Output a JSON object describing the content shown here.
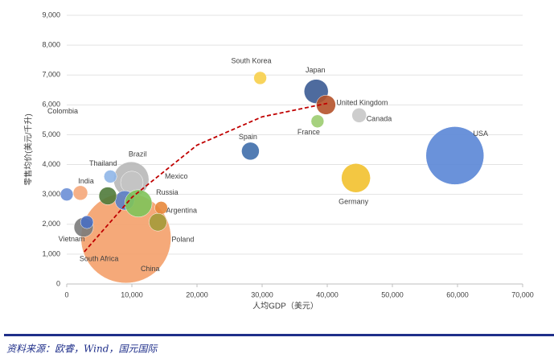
{
  "chart_data": {
    "type": "bubble",
    "xlabel": "人均GDP（美元）",
    "ylabel": "零售均价(美元/千升)",
    "source": "资料来源：欧睿，Wind，国元国际",
    "xlim": [
      0,
      70000
    ],
    "xticks": [
      0,
      {
        "value": 10000,
        "label": "10,000"
      },
      {
        "value": 20000,
        "label": "20,000"
      },
      {
        "value": 30000,
        "label": "30,000"
      },
      {
        "value": 40000,
        "label": "40,000"
      },
      {
        "value": 50000,
        "label": "50,000"
      },
      {
        "value": 60000,
        "label": "60,000"
      },
      {
        "value": 70000,
        "label": "70,000"
      }
    ],
    "ylim": [
      0,
      9000
    ],
    "yticks": [
      0,
      {
        "value": 1000,
        "label": "1,000"
      },
      {
        "value": 2000,
        "label": "2,000"
      },
      {
        "value": 3000,
        "label": "3,000"
      },
      {
        "value": 4000,
        "label": "4,000"
      },
      {
        "value": 5000,
        "label": "5,000"
      },
      {
        "value": 6000,
        "label": "6,000"
      },
      {
        "value": 7000,
        "label": "7,000"
      },
      {
        "value": 8000,
        "label": "8,000"
      },
      {
        "value": 9000,
        "label": "9,000"
      }
    ],
    "grid": true,
    "points": [
      {
        "name": "China",
        "color": "#f4a06a",
        "x": 9100,
        "y": 1540,
        "size": 56
      },
      {
        "name": "Brazil",
        "color": "#b8b8b8",
        "x": 9900,
        "y": 3500,
        "size": 22
      },
      {
        "name": "Mexico",
        "color": "#c4c4c4",
        "x": 10000,
        "y": 3400,
        "size": 14
      },
      {
        "name": null,
        "color": "#5b7fc7",
        "x": 8900,
        "y": 2800,
        "size": 12
      },
      {
        "name": "Russia",
        "color": "#7fc35a",
        "x": 11000,
        "y": 2700,
        "size": 17
      },
      {
        "name": null,
        "color": "#4f7a3a",
        "x": 6300,
        "y": 2950,
        "size": 11
      },
      {
        "name": "Colombia",
        "color": "#6b8fd6",
        "x": 0,
        "y": 3000,
        "size": 8
      },
      {
        "name": "India",
        "color": "#f5a77a",
        "x": 2100,
        "y": 3050,
        "size": 9
      },
      {
        "name": "Thailand",
        "color": "#8fb6e8",
        "x": 6700,
        "y": 3600,
        "size": 8
      },
      {
        "name": "Argentina",
        "color": "#e8883c",
        "x": 14500,
        "y": 2550,
        "size": 8
      },
      {
        "name": "Poland",
        "color": "#a59a3a",
        "x": 14000,
        "y": 2070,
        "size": 11
      },
      {
        "name": "Vietnam",
        "color": "#7b7b7b",
        "x": 2600,
        "y": 1900,
        "size": 12
      },
      {
        "name": "South Africa",
        "color": "#4a6fc2",
        "x": 3100,
        "y": 2070,
        "size": 8
      },
      {
        "name": "Spain",
        "color": "#3f6eab",
        "x": 28200,
        "y": 4450,
        "size": 11
      },
      {
        "name": "South Korea",
        "color": "#f7cf4a",
        "x": 29700,
        "y": 6900,
        "size": 8
      },
      {
        "name": "Japan",
        "color": "#3b5b94",
        "x": 38300,
        "y": 6450,
        "size": 15
      },
      {
        "name": "United Kingdom",
        "color": "#b5522a",
        "x": 39800,
        "y": 6000,
        "size": 12
      },
      {
        "name": "France",
        "color": "#9ccc70",
        "x": 38500,
        "y": 5450,
        "size": 8
      },
      {
        "name": "Canada",
        "color": "#c8c8c8",
        "x": 44900,
        "y": 5650,
        "size": 9
      },
      {
        "name": "Germany",
        "color": "#f2c12e",
        "x": 44400,
        "y": 3550,
        "size": 18
      },
      {
        "name": "USA",
        "color": "#5a86d6",
        "x": 59600,
        "y": 4300,
        "size": 36
      }
    ],
    "trendline": {
      "color": "#c00000",
      "x": [
        2700,
        10000,
        20000,
        30000,
        40000
      ],
      "y": [
        1080,
        2900,
        4650,
        5600,
        6050
      ]
    }
  }
}
